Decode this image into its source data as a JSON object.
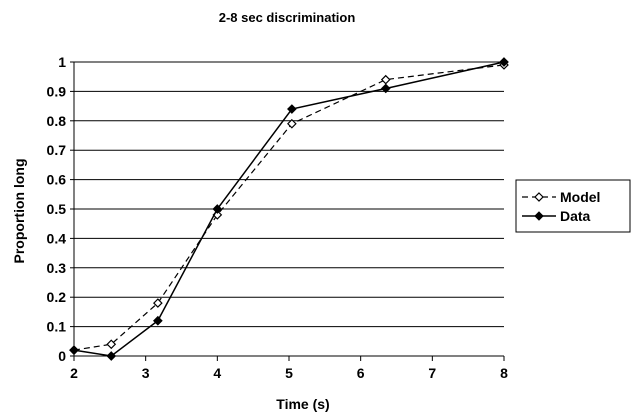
{
  "chart_data": {
    "type": "line",
    "title": "2-8 sec discrimination",
    "xlabel": "Time (s)",
    "ylabel": "Proportion long",
    "x_ticks": [
      "2",
      "3",
      "4",
      "5",
      "6",
      "7",
      "8"
    ],
    "y_ticks": [
      "0",
      "0.1",
      "0.2",
      "0.3",
      "0.4",
      "0.5",
      "0.6",
      "0.7",
      "0.8",
      "0.9",
      "1"
    ],
    "xlim": [
      2,
      8
    ],
    "ylim": [
      0,
      1
    ],
    "grid": "horizontal",
    "legend_position": "right",
    "series": [
      {
        "name": "Model",
        "style": "dashed",
        "marker": "open-diamond",
        "color": "#000000",
        "x": [
          2,
          2.52,
          3.17,
          4,
          5.04,
          6.35,
          8
        ],
        "y": [
          0.02,
          0.04,
          0.18,
          0.48,
          0.79,
          0.94,
          0.99
        ]
      },
      {
        "name": "Data",
        "style": "solid",
        "marker": "filled-diamond",
        "color": "#000000",
        "x": [
          2,
          2.52,
          3.17,
          4,
          5.04,
          6.35,
          8
        ],
        "y": [
          0.02,
          0.0,
          0.12,
          0.5,
          0.84,
          0.91,
          1.0
        ]
      }
    ]
  }
}
